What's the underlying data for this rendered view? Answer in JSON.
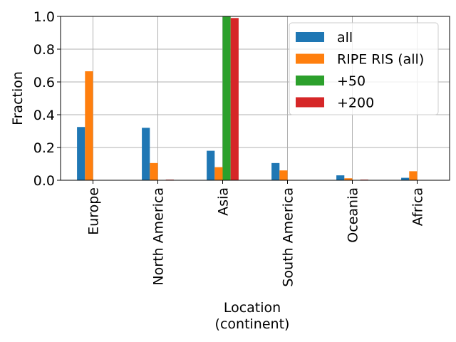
{
  "chart_data": {
    "type": "bar",
    "title": "",
    "xlabel_lines": [
      "Location",
      "(continent)"
    ],
    "ylabel": "Fraction",
    "ylim": [
      0,
      1.0
    ],
    "yticks": [
      "0.0",
      "0.2",
      "0.4",
      "0.6",
      "0.8",
      "1.0"
    ],
    "grid": true,
    "legend_position": "top-right",
    "categories": [
      "Europe",
      "North America",
      "Asia",
      "South America",
      "Oceania",
      "Africa"
    ],
    "series": [
      {
        "name": "all",
        "color": "#1f77b4",
        "values": [
          0.325,
          0.32,
          0.18,
          0.105,
          0.03,
          0.015
        ]
      },
      {
        "name": "RIPE RIS (all)",
        "color": "#ff7f0e",
        "values": [
          0.665,
          0.105,
          0.08,
          0.06,
          0.012,
          0.055
        ]
      },
      {
        "name": "+50",
        "color": "#2ca02c",
        "values": [
          0.0,
          0.0,
          1.0,
          0.0,
          0.0,
          0.0
        ]
      },
      {
        "name": "+200",
        "color": "#d62728",
        "values": [
          0.0,
          0.004,
          0.99,
          0.0,
          0.004,
          0.0
        ]
      }
    ]
  }
}
